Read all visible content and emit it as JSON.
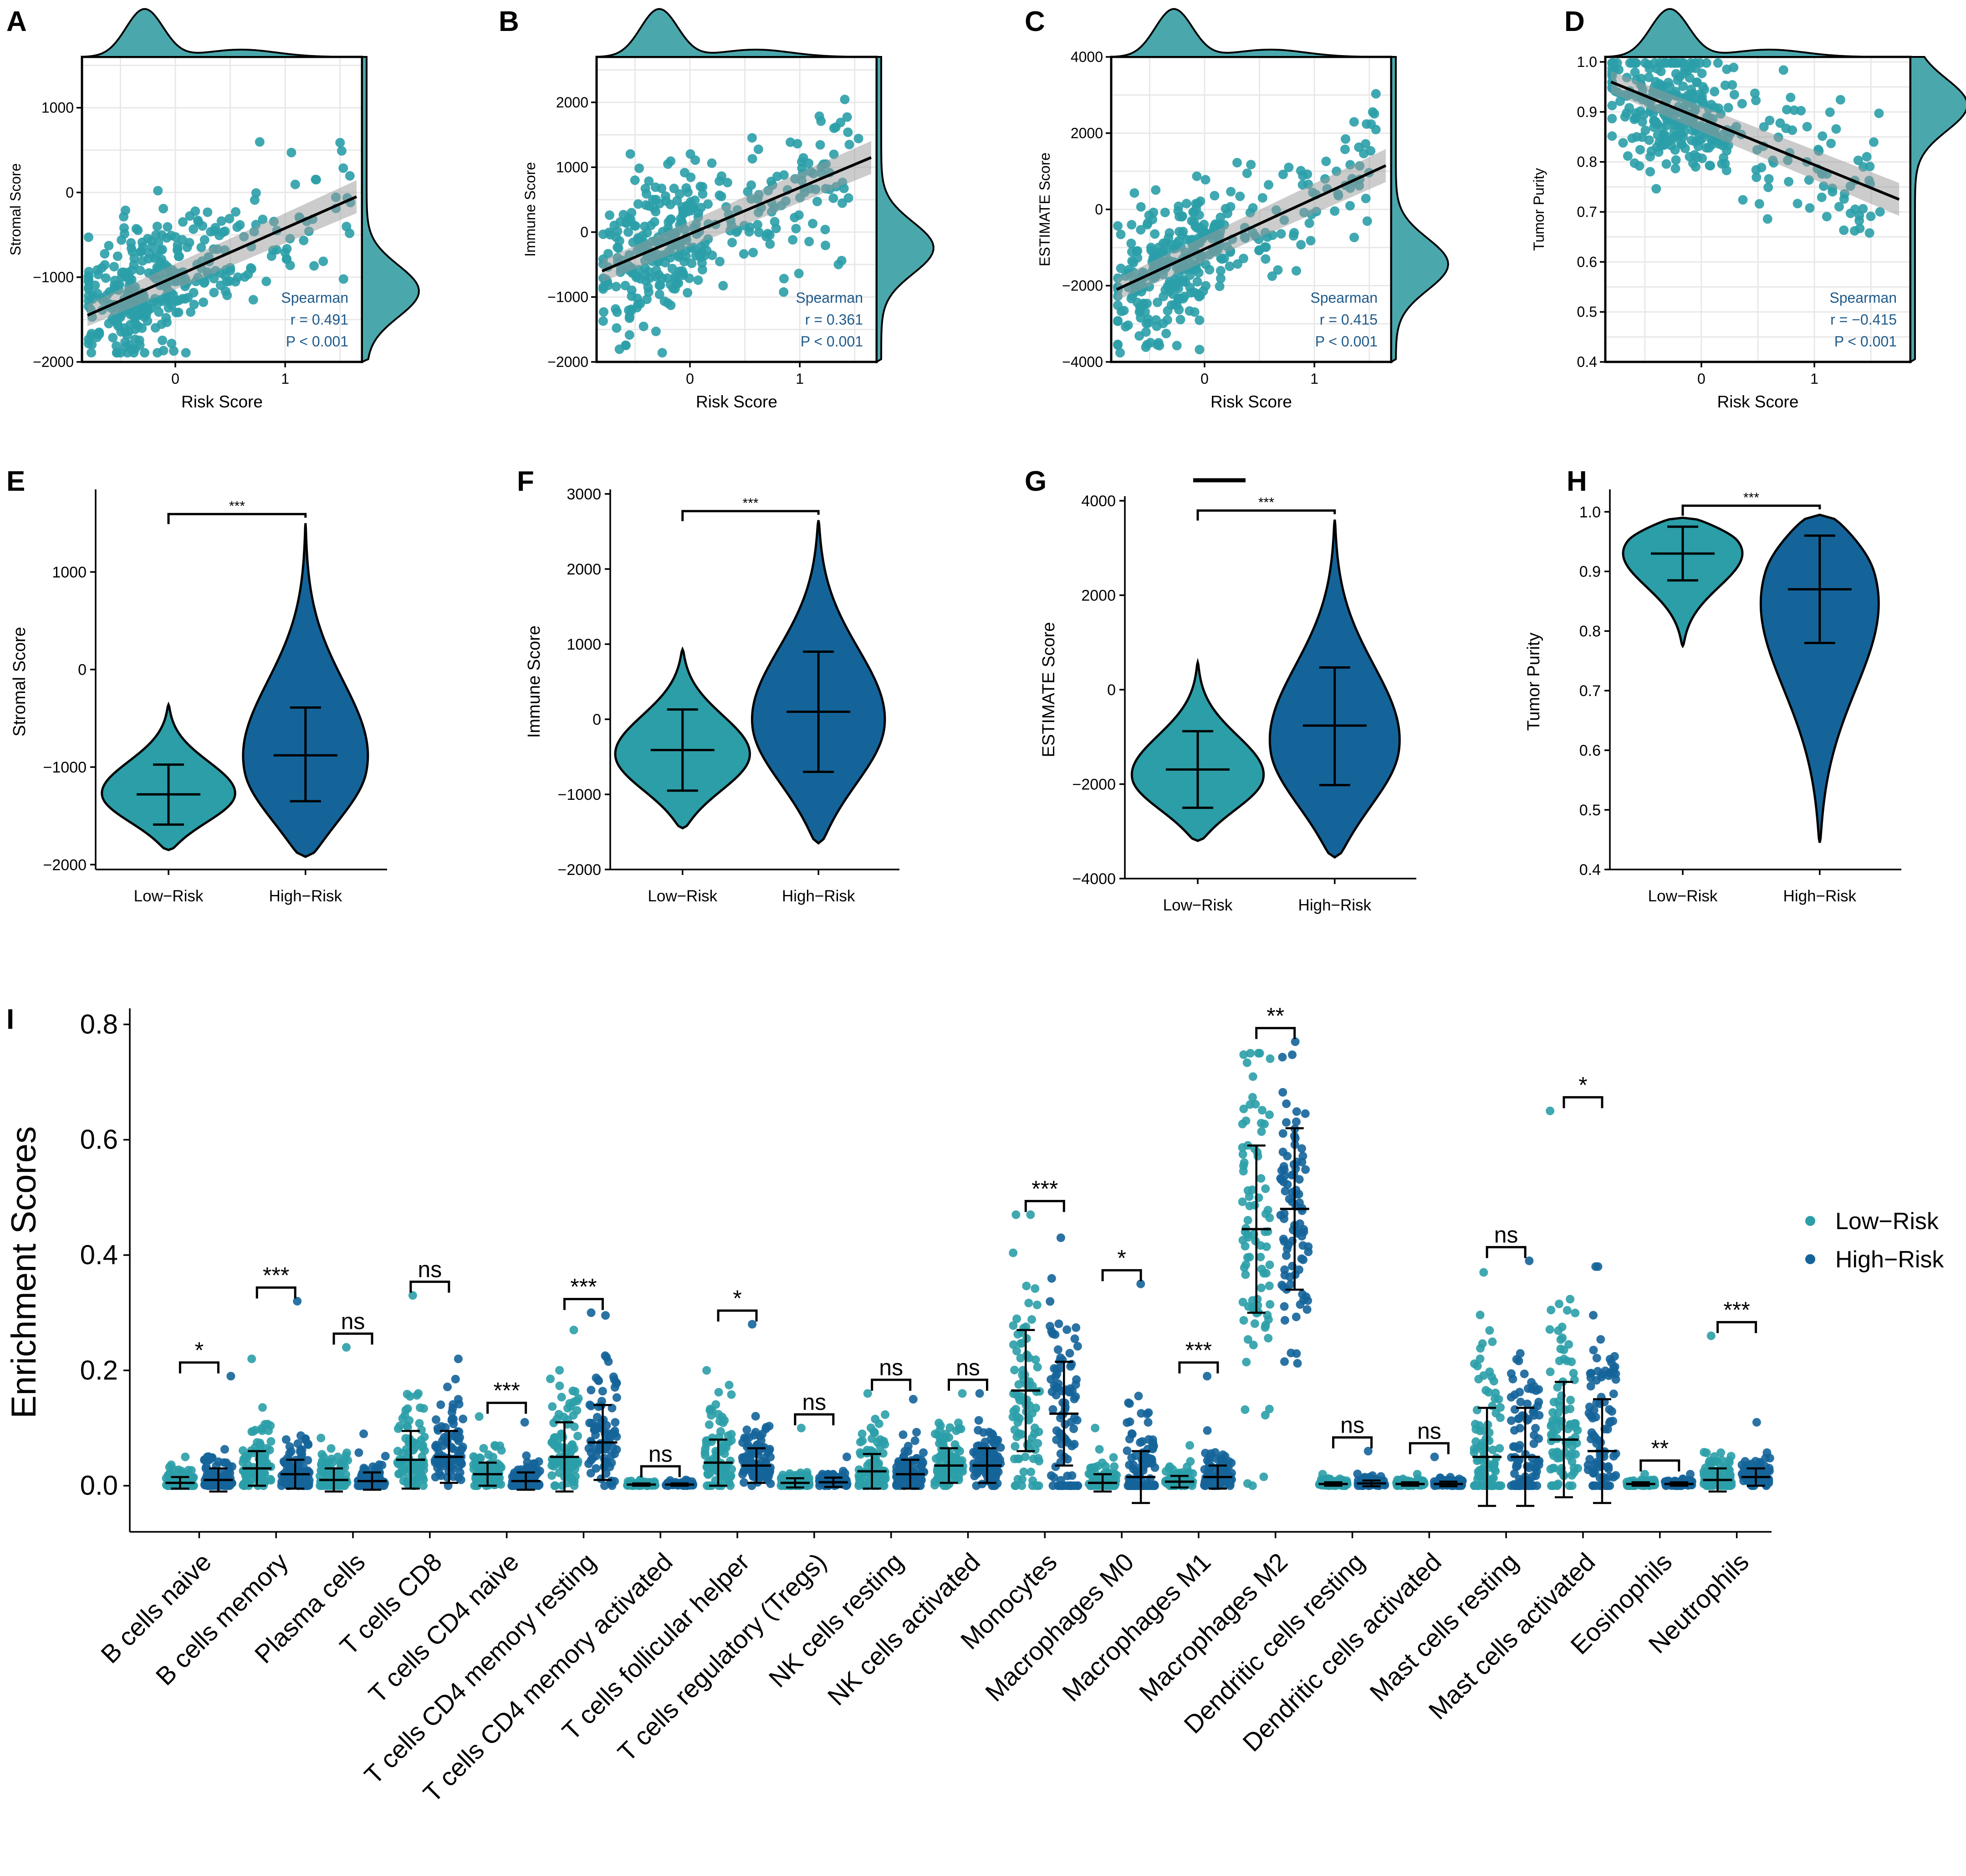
{
  "colors": {
    "low": "#2b9ea8",
    "high": "#14649a",
    "density": "#4aa8ad",
    "stat_text": "#1f5a8a"
  },
  "chart_data": [
    {
      "panel": "A",
      "type": "scatter",
      "xlabel": "Risk Score",
      "ylabel": "Stromal Score",
      "xlim": [
        -0.85,
        1.7
      ],
      "ylim": [
        -2000,
        1600
      ],
      "xticks": [
        0,
        1
      ],
      "yticks": [
        1000,
        0,
        -1000,
        -2000
      ],
      "xtick_labels": [
        "0",
        "1"
      ],
      "ytick_labels": [
        "1000",
        "0",
        "−1000",
        "−2000"
      ],
      "fit": {
        "x": [
          -0.8,
          1.65
        ],
        "y": [
          -1450,
          -50
        ]
      },
      "stats": {
        "method": "Spearman",
        "r": "r = 0.491",
        "p": "P < 0.001"
      },
      "seed": 11
    },
    {
      "panel": "B",
      "type": "scatter",
      "xlabel": "Risk Score",
      "ylabel": "Immune Score",
      "xlim": [
        -0.85,
        1.7
      ],
      "ylim": [
        -2000,
        2700
      ],
      "xticks": [
        0,
        1
      ],
      "yticks": [
        2000,
        1000,
        0,
        -1000,
        -2000
      ],
      "xtick_labels": [
        "0",
        "1"
      ],
      "ytick_labels": [
        "2000",
        "1000",
        "0",
        "−1000",
        "−2000"
      ],
      "fit": {
        "x": [
          -0.8,
          1.65
        ],
        "y": [
          -600,
          1150
        ]
      },
      "stats": {
        "method": "Spearman",
        "r": "r = 0.361",
        "p": "P < 0.001"
      },
      "seed": 23
    },
    {
      "panel": "C",
      "type": "scatter",
      "xlabel": "Risk Score",
      "ylabel": "ESTIMATE Score",
      "xlim": [
        -0.85,
        1.7
      ],
      "ylim": [
        -4000,
        4000
      ],
      "xticks": [
        0,
        1
      ],
      "yticks": [
        4000,
        2000,
        0,
        -2000,
        -4000
      ],
      "xtick_labels": [
        "0",
        "1"
      ],
      "ytick_labels": [
        "4000",
        "2000",
        "0",
        "−2000",
        "−4000"
      ],
      "fit": {
        "x": [
          -0.8,
          1.65
        ],
        "y": [
          -2100,
          1150
        ]
      },
      "stats": {
        "method": "Spearman",
        "r": "r = 0.415",
        "p": "P < 0.001"
      },
      "seed": 37
    },
    {
      "panel": "D",
      "type": "scatter",
      "xlabel": "Risk Score",
      "ylabel": "Tumor Purity",
      "xlim": [
        -0.85,
        1.85
      ],
      "ylim": [
        0.4,
        1.01
      ],
      "xticks": [
        0,
        1
      ],
      "yticks": [
        1.0,
        0.9,
        0.8,
        0.7,
        0.6,
        0.5,
        0.4
      ],
      "xtick_labels": [
        "0",
        "1"
      ],
      "ytick_labels": [
        "1.0",
        "0.9",
        "0.8",
        "0.7",
        "0.6",
        "0.5",
        "0.4"
      ],
      "fit": {
        "x": [
          -0.8,
          1.75
        ],
        "y": [
          0.96,
          0.725
        ]
      },
      "stats": {
        "method": "Spearman",
        "r": "r = −0.415",
        "p": "P < 0.001"
      },
      "seed": 53
    },
    {
      "panel": "E",
      "type": "violin",
      "ylabel": "Stromal Score",
      "categories": [
        "Low−Risk",
        "High−Risk"
      ],
      "ylim": [
        -2050,
        1800
      ],
      "yticks": [
        1000,
        0,
        -1000,
        -2000
      ],
      "ytick_labels": [
        "1000",
        "0",
        "−1000",
        "−2000"
      ],
      "groups": [
        {
          "name": "Low−Risk",
          "median": -1280,
          "q_low": -1590,
          "q_high": -975,
          "min": -1850,
          "max": -360,
          "mode": -1300
        },
        {
          "name": "High−Risk",
          "median": -880,
          "q_low": -1350,
          "q_high": -390,
          "min": -1920,
          "max": 1500,
          "mode": -1050
        }
      ],
      "significance": "***"
    },
    {
      "panel": "F",
      "type": "violin",
      "ylabel": "Immune Score",
      "categories": [
        "Low−Risk",
        "High−Risk"
      ],
      "ylim": [
        -2000,
        3000
      ],
      "yticks": [
        3000,
        2000,
        1000,
        0,
        -1000,
        -2000
      ],
      "ytick_labels": [
        "3000",
        "2000",
        "1000",
        "0",
        "−1000",
        "−2000"
      ],
      "groups": [
        {
          "name": "Low−Risk",
          "median": -410,
          "q_low": -950,
          "q_high": 130,
          "min": -1450,
          "max": 930,
          "mode": -500
        },
        {
          "name": "High−Risk",
          "median": 100,
          "q_low": -700,
          "q_high": 900,
          "min": -1650,
          "max": 2650,
          "mode": -100
        }
      ],
      "significance": "***"
    },
    {
      "panel": "G",
      "type": "violin",
      "ylabel": "ESTIMATE Score",
      "categories": [
        "Low−Risk",
        "High−Risk"
      ],
      "ylim": [
        -4000,
        4000
      ],
      "yticks": [
        4000,
        2000,
        0,
        -2000,
        -4000
      ],
      "ytick_labels": [
        "4000",
        "2000",
        "0",
        "−2000",
        "−4000"
      ],
      "groups": [
        {
          "name": "Low−Risk",
          "median": -1690,
          "q_low": -2500,
          "q_high": -880,
          "min": -3200,
          "max": 580,
          "mode": -1900
        },
        {
          "name": "High−Risk",
          "median": -760,
          "q_low": -2020,
          "q_high": 470,
          "min": -3550,
          "max": 3600,
          "mode": -1300
        }
      ],
      "significance": "***"
    },
    {
      "panel": "H",
      "type": "violin",
      "ylabel": "Tumor Purity",
      "categories": [
        "Low−Risk",
        "High−Risk"
      ],
      "ylim": [
        0.4,
        1.03
      ],
      "yticks": [
        1.0,
        0.9,
        0.8,
        0.7,
        0.6,
        0.5,
        0.4
      ],
      "ytick_labels": [
        "1.0",
        "0.9",
        "0.8",
        "0.7",
        "0.6",
        "0.5",
        "0.4"
      ],
      "groups": [
        {
          "name": "Low−Risk",
          "median": 0.93,
          "q_low": 0.885,
          "q_high": 0.975,
          "min": 0.775,
          "max": 0.99,
          "mode": 0.95
        },
        {
          "name": "High−Risk",
          "median": 0.87,
          "q_low": 0.78,
          "q_high": 0.96,
          "min": 0.445,
          "max": 0.995,
          "mode": 0.9
        }
      ],
      "significance": "***"
    },
    {
      "panel": "I",
      "type": "strip",
      "ylabel": "Enrichment Scores",
      "ylim": [
        -0.08,
        0.82
      ],
      "yticks": [
        0.0,
        0.2,
        0.4,
        0.6,
        0.8
      ],
      "ytick_labels": [
        "0.0",
        "0.2",
        "0.4",
        "0.6",
        "0.8"
      ],
      "legend": {
        "position": "right",
        "entries": [
          "Low−Risk",
          "High−Risk"
        ]
      },
      "categories": [
        "B cells naive",
        "B cells memory",
        "Plasma cells",
        "T cells CD8",
        "T cells CD4 naive",
        "T cells CD4 memory resting",
        "T cells CD4 memory activated",
        "T cells follicular helper",
        "T cells regulatory (Tregs)",
        "NK cells resting",
        "NK cells activated",
        "Monocytes",
        "Macrophages M0",
        "Macrophages M1",
        "Macrophages M2",
        "Dendritic cells resting",
        "Dendritic cells activated",
        "Mast cells resting",
        "Mast cells activated",
        "Eosinophils",
        "Neutrophils"
      ],
      "significance": [
        "*",
        "***",
        "ns",
        "ns",
        "***",
        "***",
        "ns",
        "*",
        "ns",
        "ns",
        "ns",
        "***",
        "*",
        "***",
        "**",
        "ns",
        "ns",
        "ns",
        "*",
        "**",
        "***"
      ],
      "series": [
        {
          "name": "Low−Risk",
          "mean": [
            0.005,
            0.03,
            0.01,
            0.045,
            0.02,
            0.05,
            0.002,
            0.04,
            0.005,
            0.025,
            0.035,
            0.165,
            0.005,
            0.007,
            0.445,
            0.003,
            0.003,
            0.05,
            0.08,
            0.003,
            0.01
          ],
          "sd": [
            0.01,
            0.03,
            0.02,
            0.05,
            0.02,
            0.06,
            0.002,
            0.04,
            0.008,
            0.03,
            0.03,
            0.105,
            0.015,
            0.01,
            0.145,
            0.003,
            0.003,
            0.085,
            0.1,
            0.003,
            0.02
          ],
          "max": [
            0.05,
            0.22,
            0.24,
            0.33,
            0.12,
            0.27,
            0.01,
            0.2,
            0.1,
            0.16,
            0.16,
            0.47,
            0.1,
            0.07,
            0.75,
            0.02,
            0.02,
            0.37,
            0.65,
            0.02,
            0.26
          ]
        },
        {
          "name": "High−Risk",
          "mean": [
            0.01,
            0.02,
            0.008,
            0.05,
            0.008,
            0.075,
            0.002,
            0.035,
            0.006,
            0.02,
            0.035,
            0.125,
            0.015,
            0.015,
            0.48,
            0.004,
            0.003,
            0.05,
            0.06,
            0.003,
            0.015
          ],
          "sd": [
            0.02,
            0.025,
            0.015,
            0.045,
            0.015,
            0.065,
            0.002,
            0.03,
            0.008,
            0.025,
            0.03,
            0.09,
            0.045,
            0.02,
            0.14,
            0.005,
            0.004,
            0.085,
            0.09,
            0.003,
            0.015
          ],
          "max": [
            0.19,
            0.32,
            0.09,
            0.22,
            0.11,
            0.3,
            0.01,
            0.28,
            0.05,
            0.15,
            0.16,
            0.43,
            0.35,
            0.19,
            0.77,
            0.06,
            0.05,
            0.39,
            0.38,
            0.02,
            0.11
          ]
        }
      ]
    }
  ]
}
